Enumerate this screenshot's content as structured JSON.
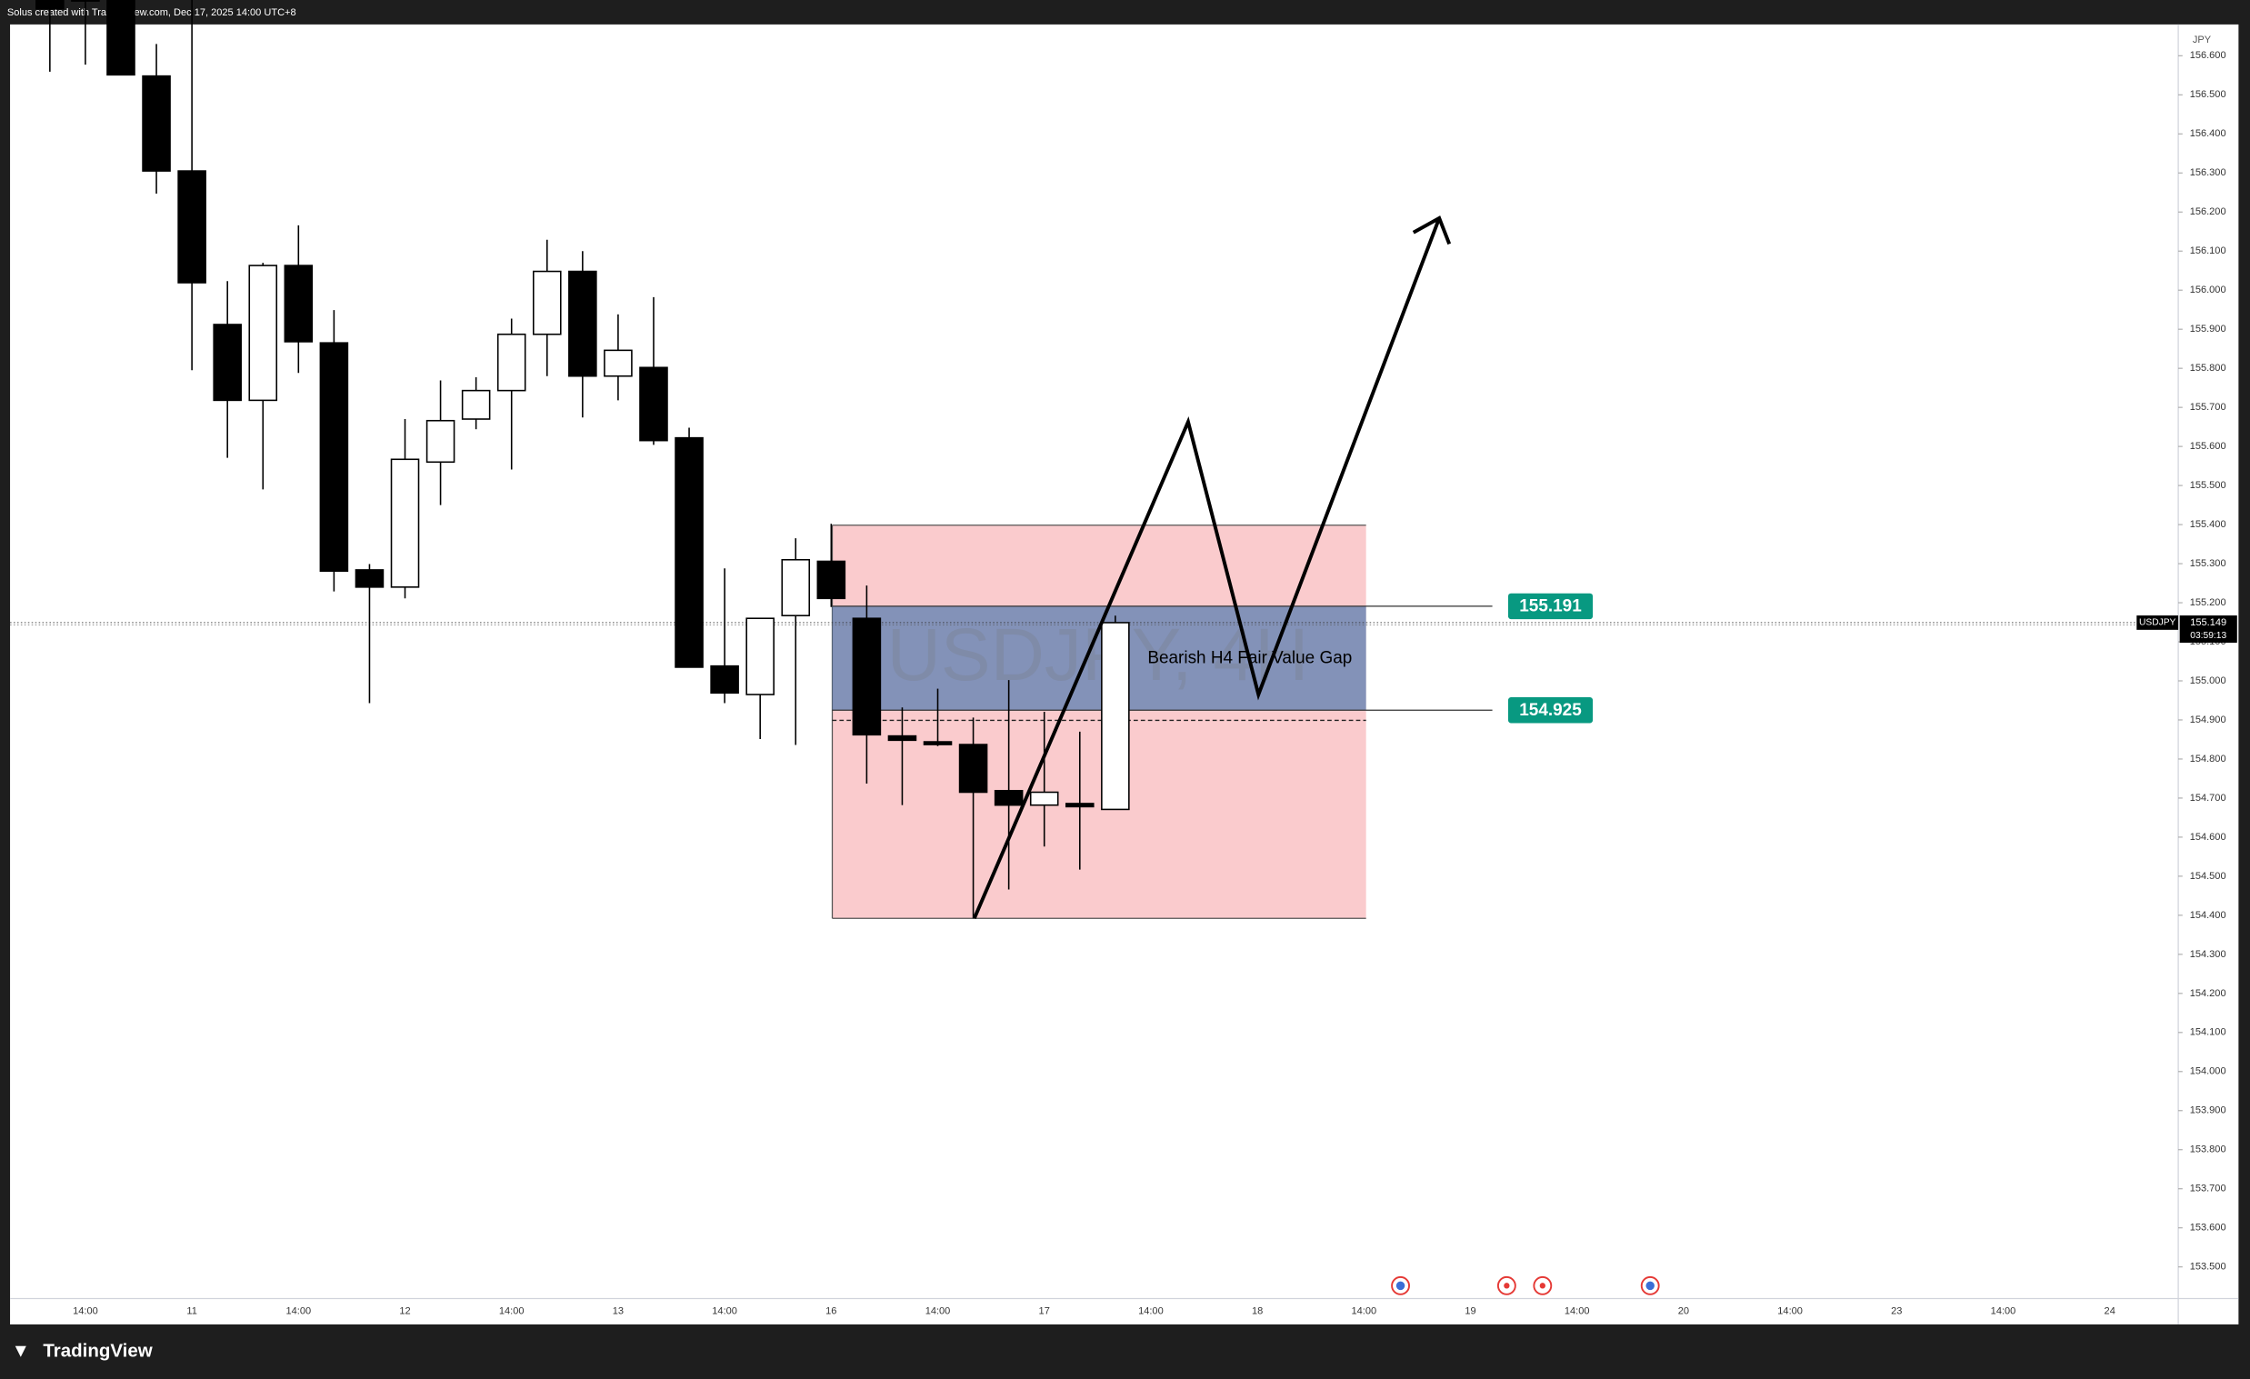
{
  "header": {
    "text": "Solus created with TradingView.com, Dec 17, 2025 14:00 UTC+8"
  },
  "chart_data": {
    "type": "candlestick",
    "watermark": "USDJPY, 4H",
    "currency": "JPY",
    "categories": [
      null,
      null,
      "14:00",
      null,
      null,
      "11",
      null,
      null,
      "14:00",
      null,
      null,
      "12",
      null,
      null,
      "14:00",
      null,
      null,
      "13",
      null,
      null,
      "14:00",
      null,
      null,
      "16",
      null,
      null,
      "14:00",
      null,
      null,
      "17",
      null,
      null,
      "14:00",
      null,
      null,
      "18",
      null,
      null,
      "14:00",
      null,
      null,
      "19",
      null,
      null,
      "14:00",
      null,
      null,
      "20",
      null,
      null,
      "14:00",
      null,
      null,
      "23",
      null,
      null,
      "14:00",
      null,
      null,
      "24",
      null
    ],
    "open": [
      null,
      156.8,
      156.78,
      156.75,
      156.548,
      156.305,
      155.912,
      155.718,
      156.063,
      155.865,
      155.284,
      155.24,
      155.56,
      155.67,
      155.743,
      155.887,
      156.048,
      155.78,
      155.802,
      155.622,
      155.038,
      154.965,
      155.167,
      155.306,
      155.16,
      154.859,
      154.844,
      154.837,
      154.719,
      154.682,
      154.686,
      154.671,
      null,
      null,
      null,
      null,
      null,
      null,
      null,
      null,
      null,
      null,
      null,
      null,
      null,
      null,
      null,
      null,
      null,
      null,
      null,
      null,
      null,
      null,
      null,
      null,
      null,
      null,
      null,
      null,
      null
    ],
    "high": [
      null,
      156.85,
      156.9,
      156.85,
      156.63,
      156.75,
      156.023,
      156.07,
      156.166,
      155.949,
      155.299,
      155.67,
      155.769,
      155.777,
      155.927,
      156.129,
      156.1,
      155.938,
      155.982,
      155.648,
      155.288,
      155.16,
      155.365,
      155.402,
      155.244,
      154.932,
      154.98,
      154.906,
      155.002,
      154.921,
      154.87,
      155.167,
      null,
      null,
      null,
      null,
      null,
      null,
      null,
      null,
      null,
      null,
      null,
      null,
      null,
      null,
      null,
      null,
      null,
      null,
      null,
      null,
      null,
      null,
      null,
      null,
      null,
      null,
      null,
      null,
      null
    ],
    "low": [
      null,
      156.559,
      156.577,
      156.55,
      156.247,
      155.795,
      155.571,
      155.49,
      155.788,
      155.229,
      154.943,
      155.211,
      155.45,
      155.644,
      155.541,
      155.78,
      155.674,
      155.718,
      155.604,
      155.035,
      154.943,
      154.851,
      154.836,
      155.189,
      154.737,
      154.682,
      154.833,
      154.392,
      154.466,
      154.576,
      154.517,
      154.671,
      null,
      null,
      null,
      null,
      null,
      null,
      null,
      null,
      null,
      null,
      null,
      null,
      null,
      null,
      null,
      null,
      null,
      null,
      null,
      null,
      null,
      null,
      null,
      null,
      null,
      null,
      null,
      null,
      null
    ],
    "close": [
      null,
      156.72,
      156.74,
      156.551,
      156.305,
      156.019,
      155.718,
      156.063,
      155.868,
      155.281,
      155.24,
      155.567,
      155.666,
      155.743,
      155.887,
      156.048,
      155.78,
      155.846,
      155.615,
      155.035,
      154.969,
      155.16,
      155.31,
      155.211,
      154.862,
      154.848,
      154.837,
      154.715,
      154.682,
      154.715,
      154.678,
      155.149,
      null,
      null,
      null,
      null,
      null,
      null,
      null,
      null,
      null,
      null,
      null,
      null,
      null,
      null,
      null,
      null,
      null,
      null,
      null,
      null,
      null,
      null,
      null,
      null,
      null,
      null,
      null,
      null,
      null
    ],
    "up_color": "#ffffff",
    "down_color": "#000000",
    "ylim": [
      153.419,
      156.68
    ],
    "yticks": [
      {
        "value": 153.5,
        "label": "153.500"
      },
      {
        "value": 153.6,
        "label": "153.600"
      },
      {
        "value": 153.7,
        "label": "153.700"
      },
      {
        "value": 153.8,
        "label": "153.800"
      },
      {
        "value": 153.9,
        "label": "153.900"
      },
      {
        "value": 154.0,
        "label": "154.000"
      },
      {
        "value": 154.1,
        "label": "154.100"
      },
      {
        "value": 154.2,
        "label": "154.200"
      },
      {
        "value": 154.3,
        "label": "154.300"
      },
      {
        "value": 154.4,
        "label": "154.400"
      },
      {
        "value": 154.5,
        "label": "154.500"
      },
      {
        "value": 154.6,
        "label": "154.600"
      },
      {
        "value": 154.7,
        "label": "154.700"
      },
      {
        "value": 154.8,
        "label": "154.800"
      },
      {
        "value": 154.9,
        "label": "154.900"
      },
      {
        "value": 155.0,
        "label": "155.000"
      },
      {
        "value": 155.1,
        "label": "155.100"
      },
      {
        "value": 155.2,
        "label": "155.200"
      },
      {
        "value": 155.3,
        "label": "155.300"
      },
      {
        "value": 155.4,
        "label": "155.400"
      },
      {
        "value": 155.5,
        "label": "155.500"
      },
      {
        "value": 155.6,
        "label": "155.600"
      },
      {
        "value": 155.7,
        "label": "155.700"
      },
      {
        "value": 155.8,
        "label": "155.800"
      },
      {
        "value": 155.9,
        "label": "155.900"
      },
      {
        "value": 156.0,
        "label": "156.000"
      },
      {
        "value": 156.1,
        "label": "156.100"
      },
      {
        "value": 156.2,
        "label": "156.200"
      },
      {
        "value": 156.3,
        "label": "156.300"
      },
      {
        "value": 156.4,
        "label": "156.400"
      },
      {
        "value": 156.5,
        "label": "156.500"
      },
      {
        "value": 156.6,
        "label": "156.600"
      }
    ],
    "symbol": "USDJPY",
    "last_price": {
      "value": 155.149,
      "label": "155.149"
    },
    "countdown": "03:59:13",
    "levels": [
      {
        "value": 155.191,
        "label": "155.191"
      },
      {
        "value": 154.925,
        "label": "154.925"
      }
    ],
    "annotation": "Bearish H4 Fair Value Gap"
  },
  "footer": {
    "logo": "TradingView"
  }
}
